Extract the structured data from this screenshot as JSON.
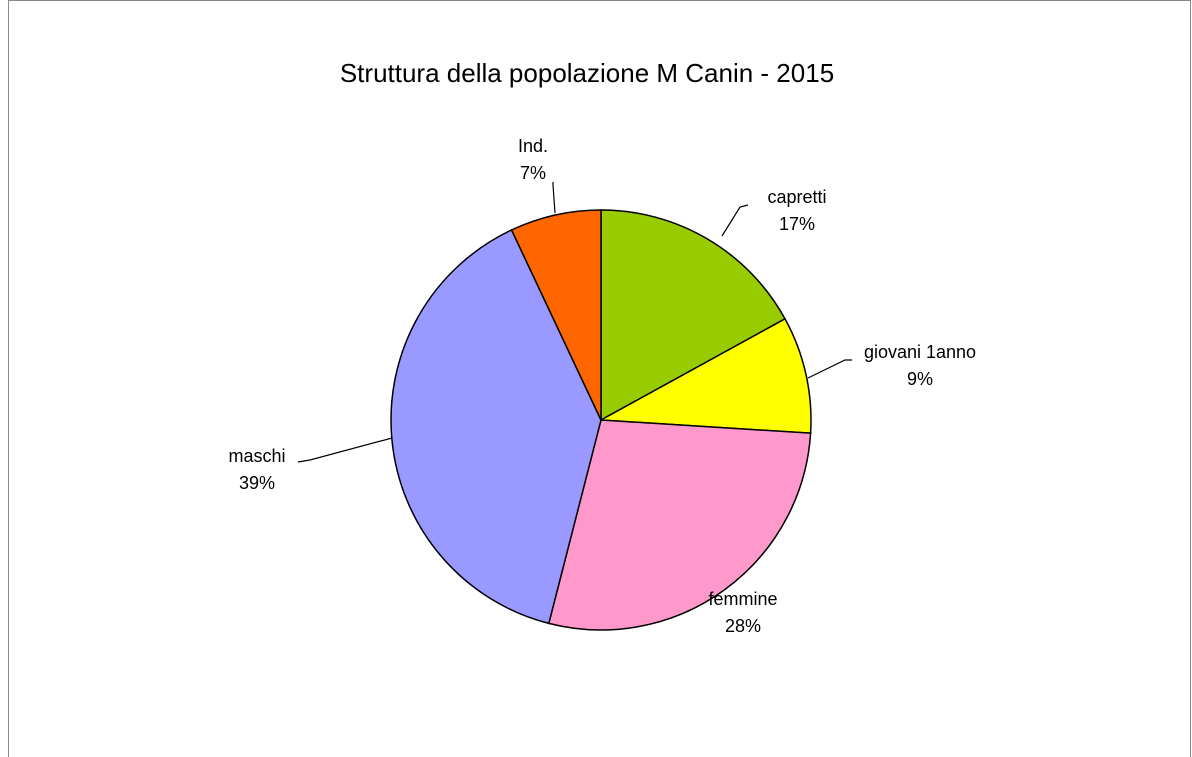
{
  "chart_data": {
    "type": "pie",
    "title": "Struttura della popolazione M Canin - 2015",
    "categories": [
      "capretti",
      "giovani 1anno",
      "femmine",
      "maschi",
      "Ind."
    ],
    "values": [
      17,
      9,
      28,
      39,
      7
    ],
    "value_labels": [
      "17%",
      "9%",
      "28%",
      "39%",
      "7%"
    ],
    "colors": [
      "#99cc00",
      "#ffff00",
      "#ff99cc",
      "#9999ff",
      "#ff6600"
    ]
  }
}
